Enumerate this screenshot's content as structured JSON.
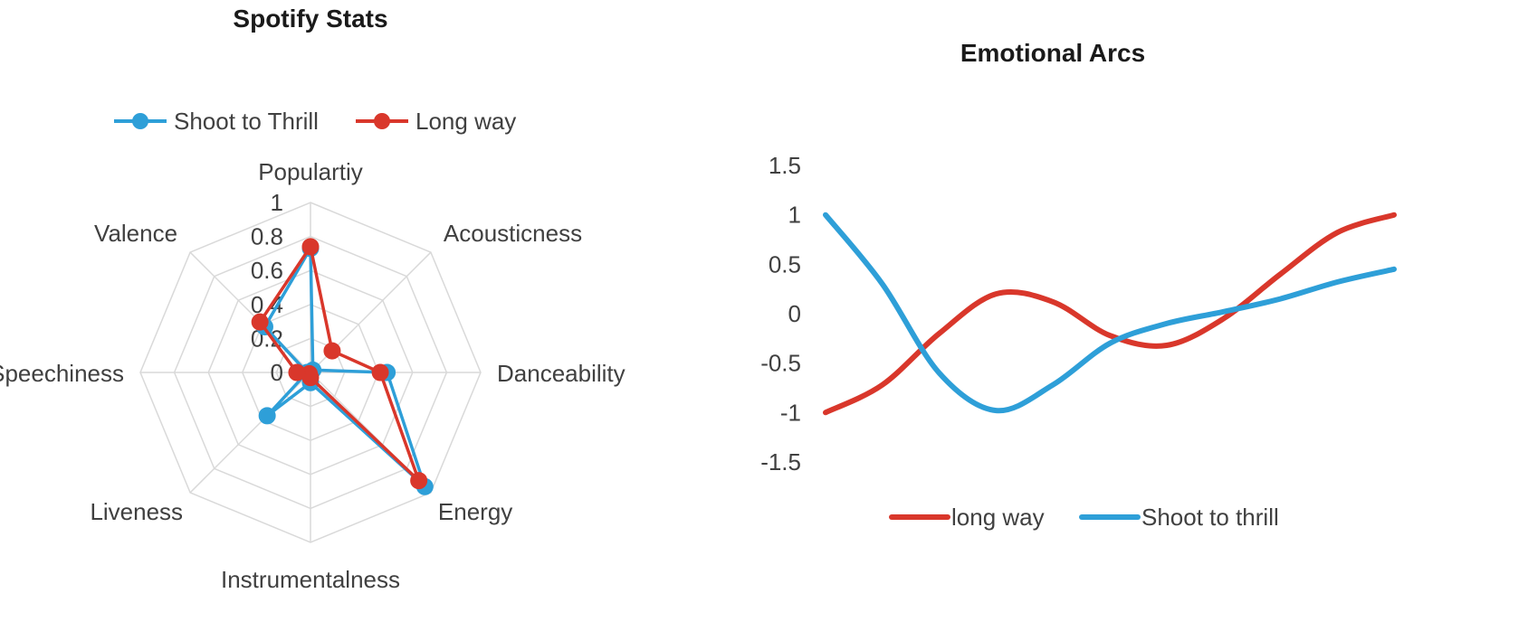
{
  "chart_data": [
    {
      "type": "radar",
      "title": "Spotify Stats",
      "axes": [
        "Populartiy",
        "Acousticness",
        "Danceability",
        "Energy",
        "Instrumentalness",
        "Liveness",
        "Speechiness",
        "Valence"
      ],
      "ticks": [
        "0",
        "0.2",
        "0.4",
        "0.6",
        "0.8",
        "1"
      ],
      "range": [
        0,
        1
      ],
      "grid": true,
      "legend_position": "top",
      "series": [
        {
          "name": "Shoot to Thrill",
          "color": "#2E9FD8",
          "values": [
            0.73,
            0.02,
            0.45,
            0.95,
            0.06,
            0.36,
            0.02,
            0.38
          ]
        },
        {
          "name": "Long way",
          "color": "#D9372B",
          "values": [
            0.74,
            0.18,
            0.41,
            0.9,
            0.03,
            0.01,
            0.08,
            0.42
          ]
        }
      ]
    },
    {
      "type": "line",
      "title": "Emotional Arcs",
      "ylim": [
        -1.5,
        1.5
      ],
      "yticks": [
        "1.5",
        "1",
        "0.5",
        "0",
        "-0.5",
        "-1",
        "-1.5"
      ],
      "x": [
        0,
        10,
        20,
        30,
        40,
        50,
        60,
        70,
        80,
        90,
        100
      ],
      "grid": false,
      "legend_position": "bottom",
      "series": [
        {
          "name": "long way",
          "color": "#D9372B",
          "values": [
            -1.0,
            -0.72,
            -0.2,
            0.2,
            0.12,
            -0.22,
            -0.32,
            -0.05,
            0.4,
            0.82,
            1.0
          ]
        },
        {
          "name": "Shoot to thrill",
          "color": "#2E9FD8",
          "values": [
            1.0,
            0.3,
            -0.6,
            -0.98,
            -0.72,
            -0.3,
            -0.1,
            0.02,
            0.15,
            0.32,
            0.45
          ]
        }
      ]
    }
  ]
}
